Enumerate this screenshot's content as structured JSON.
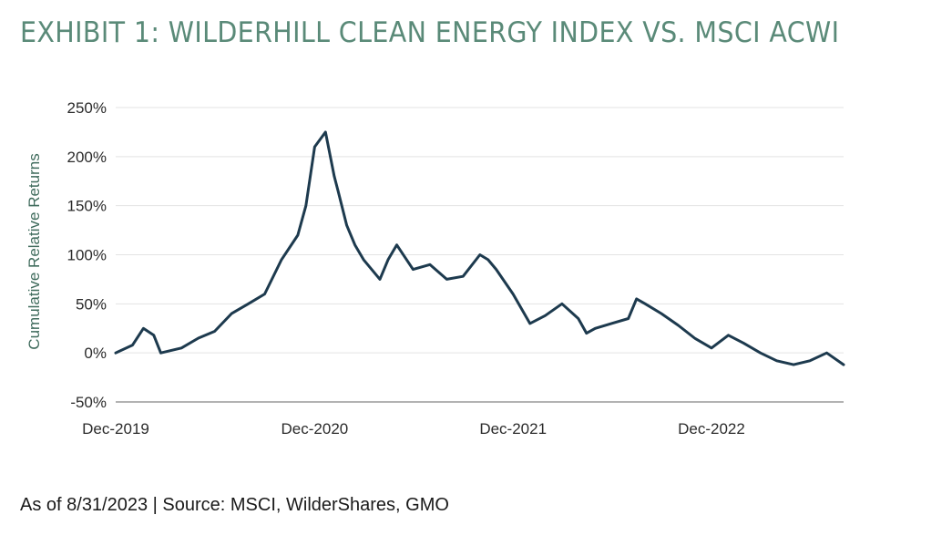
{
  "page": {
    "title": "EXHIBIT 1: WILDERHILL CLEAN ENERGY INDEX VS. MSCI ACWI",
    "source_note": "As of 8/31/2023 | Source: MSCI, WilderShares, GMO"
  },
  "chart_data": {
    "type": "line",
    "title": "",
    "xlabel": "",
    "ylabel": "Cumulative Relative Returns",
    "ylim": [
      -50,
      250
    ],
    "yticks": [
      -50,
      0,
      50,
      100,
      150,
      200,
      250
    ],
    "ytick_labels": [
      "-50%",
      "0%",
      "50%",
      "100%",
      "150%",
      "200%",
      "250%"
    ],
    "xlim": [
      "2019-12-31",
      "2023-08-31"
    ],
    "xtick_labels": [
      "Dec-2019",
      "Dec-2020",
      "Dec-2021",
      "Dec-2022"
    ],
    "xtick_dates": [
      "2019-12-31",
      "2020-12-31",
      "2021-12-31",
      "2022-12-31"
    ],
    "grid": "horizontal",
    "line_color": "#1d3a4e",
    "grid_color": "#e3e3e3",
    "axis_color": "#9a9a9a",
    "series": [
      {
        "x": [
          "2019-12-31",
          "2020-01-31",
          "2020-02-20",
          "2020-03-10",
          "2020-03-23",
          "2020-04-30",
          "2020-05-31",
          "2020-06-30",
          "2020-07-31",
          "2020-08-31",
          "2020-09-30",
          "2020-10-31",
          "2020-11-30",
          "2020-12-15",
          "2020-12-31",
          "2021-01-20",
          "2021-02-05",
          "2021-02-12",
          "2021-02-28",
          "2021-03-15",
          "2021-03-31",
          "2021-04-30",
          "2021-05-15",
          "2021-05-31",
          "2021-06-30",
          "2021-07-31",
          "2021-08-31",
          "2021-09-30",
          "2021-10-31",
          "2021-11-15",
          "2021-11-30",
          "2021-12-31",
          "2022-01-31",
          "2022-02-28",
          "2022-03-31",
          "2022-04-30",
          "2022-05-15",
          "2022-05-31",
          "2022-06-30",
          "2022-07-31",
          "2022-08-15",
          "2022-08-31",
          "2022-09-30",
          "2022-10-31",
          "2022-11-30",
          "2022-12-31",
          "2023-01-31",
          "2023-02-28",
          "2023-03-31",
          "2023-04-30",
          "2023-05-31",
          "2023-06-30",
          "2023-07-31",
          "2023-08-31"
        ],
        "values": [
          0,
          8,
          25,
          18,
          0,
          5,
          15,
          22,
          40,
          50,
          60,
          95,
          120,
          150,
          210,
          225,
          180,
          165,
          130,
          110,
          95,
          75,
          95,
          110,
          85,
          90,
          75,
          78,
          100,
          95,
          85,
          60,
          30,
          38,
          50,
          35,
          20,
          25,
          30,
          35,
          55,
          50,
          40,
          28,
          15,
          5,
          18,
          10,
          0,
          -8,
          -12,
          -8,
          0,
          -12
        ]
      }
    ]
  }
}
